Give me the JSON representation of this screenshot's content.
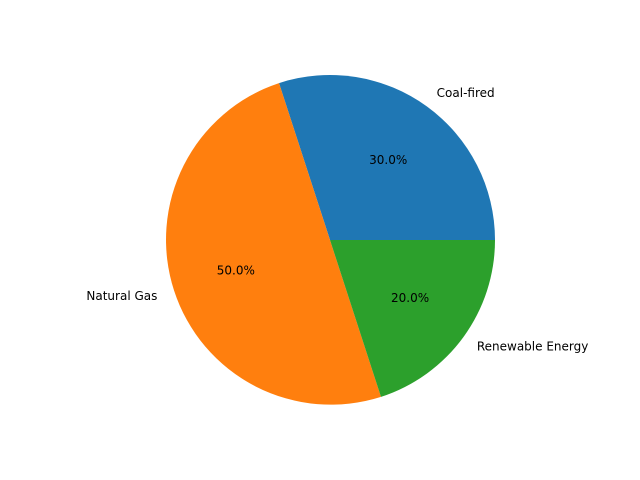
{
  "chart_data": {
    "type": "pie",
    "title": "",
    "categories": [
      "Coal-fired",
      "Natural Gas",
      "Renewable Energy"
    ],
    "values": [
      30,
      50,
      20
    ],
    "percent_labels": [
      "30.0%",
      "50.0%",
      "20.0%"
    ],
    "colors": [
      "#1f77b4",
      "#ff7f0e",
      "#2ca02c"
    ],
    "start_angle_deg": 0,
    "direction": "counterclockwise"
  }
}
